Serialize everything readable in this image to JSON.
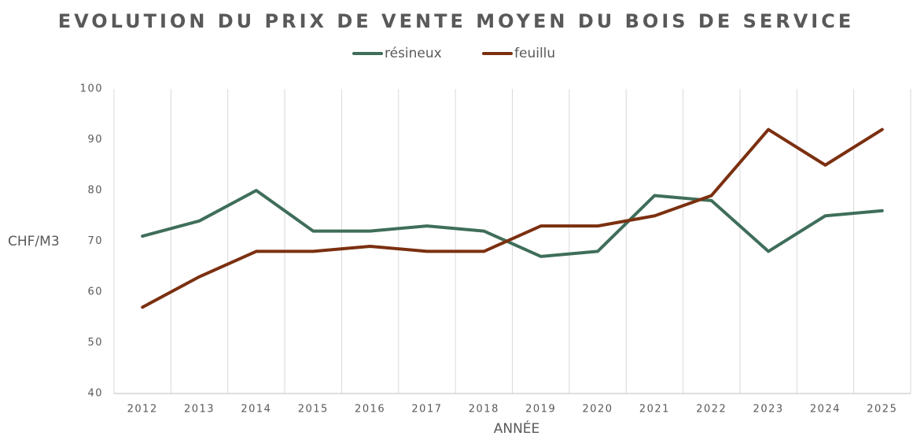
{
  "chart_data": {
    "type": "line",
    "title": "EVOLUTION DU PRIX DE VENTE MOYEN DU BOIS DE SERVICE",
    "x_label": "ANNÉE",
    "y_label": "CHF/M3",
    "categories": [
      "2012",
      "2013",
      "2014",
      "2015",
      "2016",
      "2017",
      "2018",
      "2019",
      "2020",
      "2021",
      "2022",
      "2023",
      "2024",
      "2025"
    ],
    "series": [
      {
        "name": "résineux",
        "color": "#3f6e5a",
        "values": [
          71,
          74,
          80,
          72,
          72,
          73,
          72,
          67,
          68,
          79,
          78,
          68,
          75,
          76
        ]
      },
      {
        "name": "feuillu",
        "color": "#7b3010",
        "values": [
          57,
          63,
          68,
          68,
          69,
          68,
          68,
          73,
          73,
          75,
          79,
          92,
          85,
          92
        ]
      }
    ],
    "ylim": [
      40,
      100
    ],
    "yticks": [
      40,
      50,
      60,
      70,
      80,
      90,
      100
    ],
    "grid": true,
    "legend": "top"
  }
}
